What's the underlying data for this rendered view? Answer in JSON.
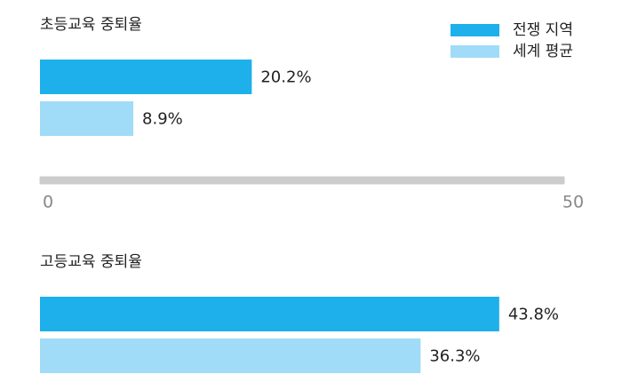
{
  "chart_data": {
    "type": "bar",
    "orientation": "horizontal",
    "categories": [
      "초등교육 중퇴율",
      "고등교육 중퇴율"
    ],
    "series": [
      {
        "name": "전쟁 지역",
        "color": "#1eb0ea",
        "values": [
          20.2,
          43.8
        ],
        "value_labels": [
          "20.2%",
          "43.8%"
        ]
      },
      {
        "name": "세계 평균",
        "color": "#a0dcf7",
        "values": [
          8.9,
          36.3
        ],
        "value_labels": [
          "8.9%",
          "36.3%"
        ]
      }
    ],
    "xlim": [
      0,
      50
    ],
    "xticks": [
      0,
      50
    ],
    "legend": "top-right"
  }
}
